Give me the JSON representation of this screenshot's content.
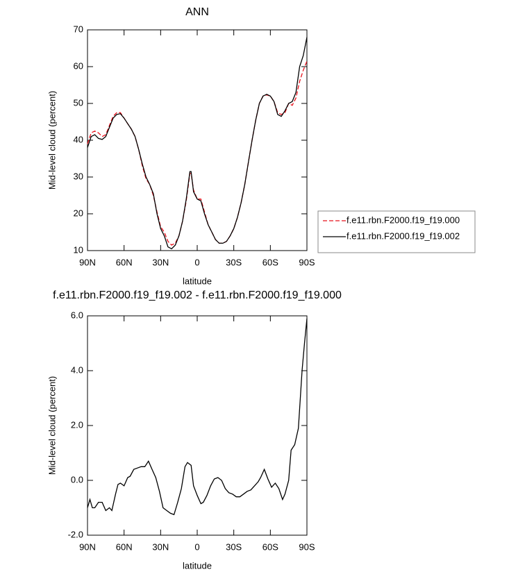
{
  "chart_data": [
    {
      "type": "line",
      "title": "ANN",
      "x_label": "latitude",
      "y_label": "Mid-level cloud (percent)",
      "x": [
        90,
        87,
        84,
        81,
        78,
        75,
        72,
        69,
        66,
        63,
        60,
        57,
        54,
        51,
        48,
        45,
        42,
        39,
        36,
        33,
        30,
        27,
        24,
        21,
        18,
        15,
        12,
        9,
        6,
        5,
        3,
        0,
        -3,
        -6,
        -9,
        -12,
        -15,
        -18,
        -21,
        -24,
        -27,
        -30,
        -33,
        -36,
        -39,
        -42,
        -45,
        -48,
        -51,
        -54,
        -57,
        -60,
        -63,
        -66,
        -69,
        -72,
        -75,
        -78,
        -81,
        -84,
        -87,
        -90
      ],
      "series": [
        {
          "name": "f.e11.rbn.F2000.f19_f19.000",
          "color": "#e8101a",
          "linestyle": "dashed",
          "values": [
            39,
            42,
            42.5,
            42,
            41,
            41.5,
            44,
            46.5,
            47.5,
            47.5,
            46,
            44.5,
            43,
            41,
            37.5,
            33,
            29.5,
            28,
            25,
            20.5,
            16.5,
            15,
            12.5,
            11.5,
            12,
            14,
            18,
            23.5,
            31,
            31,
            26.5,
            24,
            24,
            20.5,
            17,
            15,
            13,
            12,
            12,
            12.5,
            14,
            16,
            19,
            23,
            28,
            34,
            40,
            45.5,
            50,
            52,
            52.3,
            52,
            50.5,
            47.5,
            47,
            47.5,
            50,
            49.5,
            51.5,
            56,
            59,
            61.5
          ]
        },
        {
          "name": "f.e11.rbn.F2000.f19_f19.002",
          "color": "#000000",
          "linestyle": "solid",
          "values": [
            38,
            41,
            41.5,
            40.5,
            40.2,
            41,
            43.5,
            46,
            47,
            47.2,
            46,
            44.5,
            43,
            41,
            37.5,
            33.5,
            30,
            28,
            25.5,
            20,
            16,
            14,
            11,
            10.5,
            11.5,
            14,
            18,
            24,
            31.5,
            31.5,
            26,
            24,
            23.5,
            20,
            17,
            15,
            13,
            12,
            12,
            12.5,
            14,
            16,
            19,
            23,
            28,
            34,
            40,
            45.5,
            50,
            52,
            52.5,
            52,
            50.5,
            47,
            46.5,
            48,
            50,
            50.5,
            53,
            60,
            63,
            68
          ]
        }
      ],
      "xlim": [
        90,
        -90
      ],
      "xticks": [
        {
          "value": 90,
          "label": "90N"
        },
        {
          "value": 60,
          "label": "60N"
        },
        {
          "value": 30,
          "label": "30N"
        },
        0,
        {
          "value": -30,
          "label": "30S"
        },
        {
          "value": -60,
          "label": "60S"
        },
        {
          "value": -90,
          "label": "90S"
        }
      ],
      "ylim": [
        10,
        70
      ],
      "yticks": [
        10,
        20,
        30,
        40,
        50,
        60,
        70
      ],
      "legend": "right"
    },
    {
      "type": "line",
      "title": "f.e11.rbn.F2000.f19_f19.002 - f.e11.rbn.F2000.f19_f19.000",
      "x_label": "latitude",
      "y_label": "Mid-level cloud (percent)",
      "x": [
        90,
        88,
        86,
        84,
        81,
        78,
        75,
        72,
        70,
        67,
        65,
        63,
        60,
        57,
        55,
        52,
        49,
        46,
        43,
        40,
        37,
        34,
        31,
        28,
        25,
        22,
        19,
        16,
        13,
        10,
        8,
        5,
        3,
        0,
        -3,
        -5,
        -8,
        -11,
        -14,
        -17,
        -20,
        -23,
        -26,
        -29,
        -32,
        -35,
        -38,
        -41,
        -44,
        -47,
        -50,
        -52,
        -55,
        -58,
        -61,
        -64,
        -67,
        -70,
        -72,
        -75,
        -77,
        -80,
        -83,
        -86,
        -88,
        -90
      ],
      "values": [
        -1,
        -0.7,
        -1.0,
        -1.0,
        -0.8,
        -0.8,
        -1.1,
        -1.0,
        -1.1,
        -0.5,
        -0.15,
        -0.1,
        -0.2,
        0.1,
        0.15,
        0.4,
        0.45,
        0.5,
        0.5,
        0.7,
        0.4,
        0.1,
        -0.4,
        -1.0,
        -1.1,
        -1.2,
        -1.25,
        -0.8,
        -0.3,
        0.5,
        0.65,
        0.55,
        -0.2,
        -0.55,
        -0.85,
        -0.8,
        -0.55,
        -0.2,
        0.05,
        0.1,
        0,
        -0.3,
        -0.45,
        -0.5,
        -0.6,
        -0.6,
        -0.5,
        -0.4,
        -0.35,
        -0.2,
        -0.05,
        0.1,
        0.4,
        0.05,
        -0.25,
        -0.1,
        -0.3,
        -0.7,
        -0.5,
        0,
        1.1,
        1.3,
        1.9,
        4.0,
        5.0,
        5.9
      ],
      "color": "#000000",
      "xlim": [
        90,
        -90
      ],
      "xticks": [
        {
          "value": 90,
          "label": "90N"
        },
        {
          "value": 60,
          "label": "60N"
        },
        {
          "value": 30,
          "label": "30N"
        },
        0,
        {
          "value": -30,
          "label": "30S"
        },
        {
          "value": -60,
          "label": "60S"
        },
        {
          "value": -90,
          "label": "90S"
        }
      ],
      "ylim": [
        -2,
        6
      ],
      "yticks": [
        {
          "value": -2,
          "label": "-2.0"
        },
        {
          "value": 0,
          "label": "0.0"
        },
        {
          "value": 2,
          "label": "2.0"
        },
        {
          "value": 4,
          "label": "4.0"
        },
        {
          "value": 6,
          "label": "6.0"
        }
      ]
    }
  ]
}
